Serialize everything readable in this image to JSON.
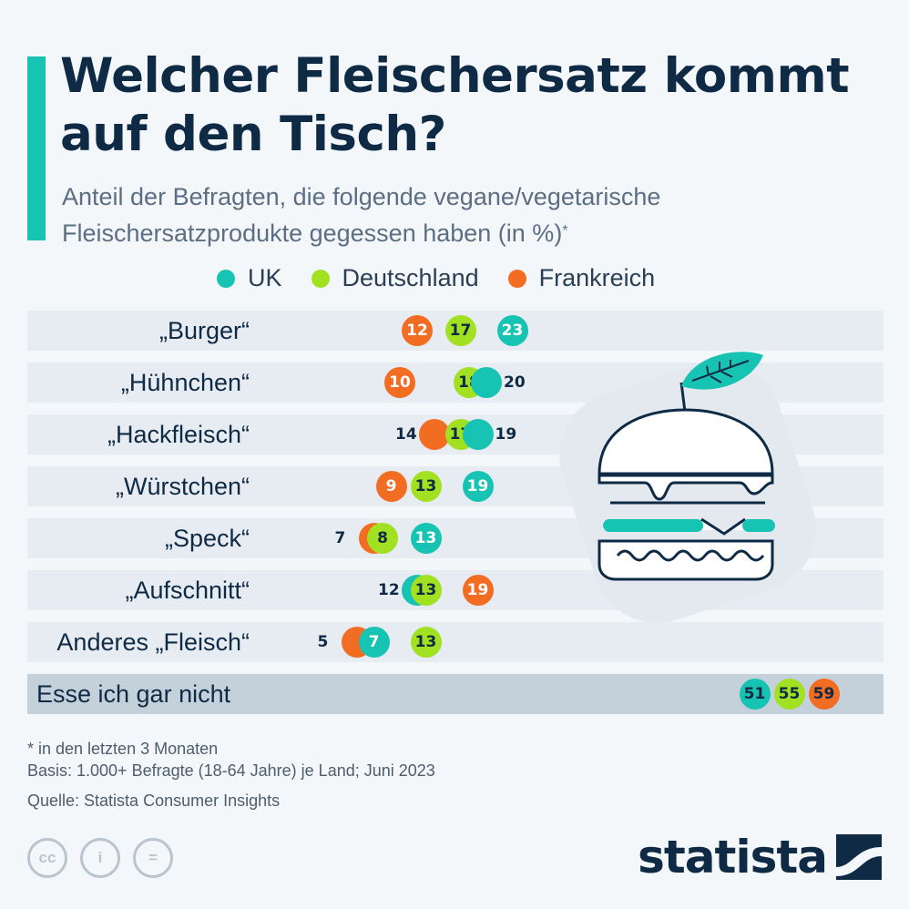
{
  "title": "Welcher Fleischersatz kommt auf den Tisch?",
  "subtitle": "Anteil der Befragten, die folgende vegane/vegetarische Fleischersatzprodukte gegessen haben (in %)",
  "subtitle_mark": "*",
  "colors": {
    "accent": "#17c3b2",
    "uk": "#17c3b2",
    "de": "#a2e022",
    "fr": "#f26c22",
    "text": "#0f2a44"
  },
  "legend": [
    {
      "name": "UK",
      "color": "#17c3b2"
    },
    {
      "name": "Deutschland",
      "color": "#a2e022"
    },
    {
      "name": "Frankreich",
      "color": "#f26c22"
    }
  ],
  "chart_data": {
    "type": "scatter",
    "categories": [
      "„Burger“",
      "„Hühnchen“",
      "„Hackfleisch“",
      "„Würstchen“",
      "„Speck“",
      "„Aufschnitt“",
      "Anderes „Fleisch“",
      "Esse ich gar nicht"
    ],
    "series": [
      {
        "name": "UK",
        "values": [
          23,
          20,
          19,
          19,
          13,
          12,
          7,
          51
        ]
      },
      {
        "name": "Deutschland",
        "values": [
          17,
          18,
          17,
          13,
          8,
          13,
          13,
          55
        ]
      },
      {
        "name": "Frankreich",
        "values": [
          12,
          10,
          14,
          9,
          7,
          19,
          5,
          59
        ]
      }
    ],
    "xlim": [
      0,
      60
    ]
  },
  "footnotes": {
    "note": "* in den letzten 3 Monaten",
    "basis": "Basis: 1.000+ Befragte (18-64 Jahre) je Land; Juni 2023",
    "source": "Quelle: Statista Consumer Insights"
  },
  "license_icons": [
    "cc",
    "i",
    "="
  ],
  "logo": "statista"
}
